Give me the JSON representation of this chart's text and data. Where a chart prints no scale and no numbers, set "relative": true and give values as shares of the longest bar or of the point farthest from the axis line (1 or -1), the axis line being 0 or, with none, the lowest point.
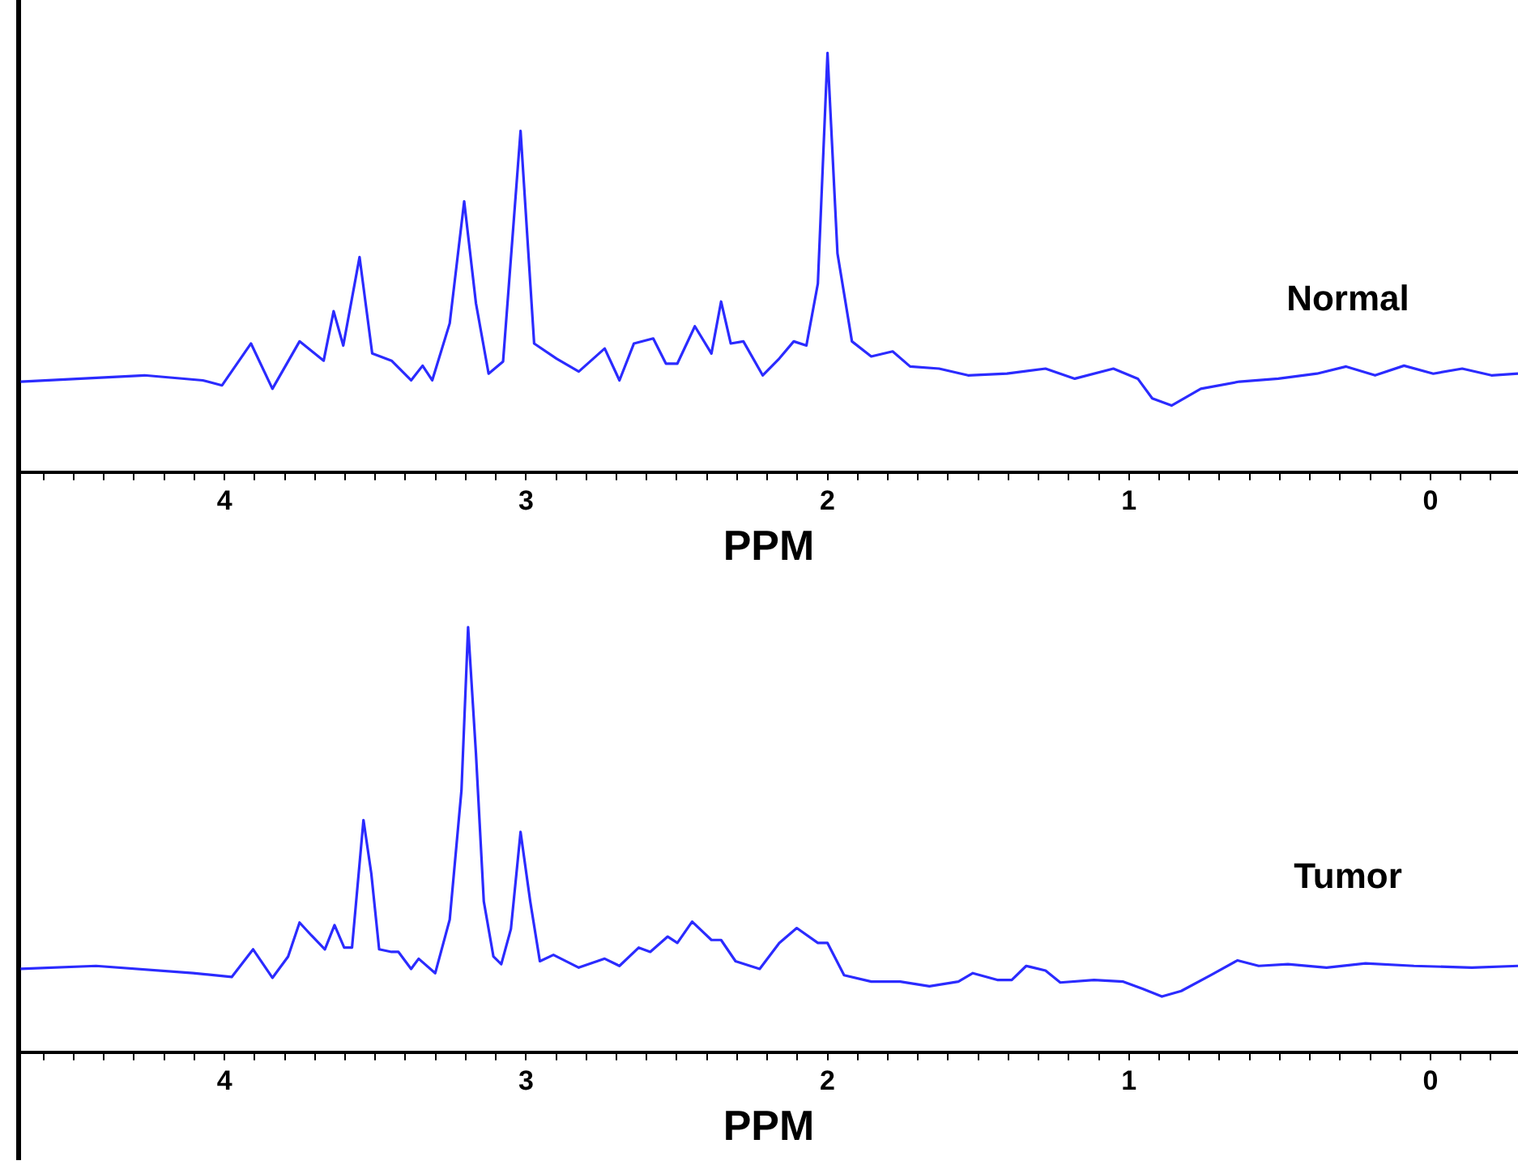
{
  "chart_data": [
    {
      "type": "line",
      "xlabel": "PPM",
      "relative": true,
      "marker": "none",
      "xlim": [
        4.68,
        -0.29
      ],
      "xticks": [
        {
          "value": 4.6,
          "label": null
        },
        {
          "value": 4.5,
          "label": null
        },
        {
          "value": 4.4,
          "label": null
        },
        {
          "value": 4.3,
          "label": null
        },
        {
          "value": 4.2,
          "label": null
        },
        {
          "value": 4.1,
          "label": null
        },
        4,
        {
          "value": 3.9,
          "label": null
        },
        {
          "value": 3.8,
          "label": null
        },
        {
          "value": 3.7,
          "label": null
        },
        {
          "value": 3.6,
          "label": null
        },
        {
          "value": 3.5,
          "label": null
        },
        {
          "value": 3.4,
          "label": null
        },
        {
          "value": 3.3,
          "label": null
        },
        {
          "value": 3.2,
          "label": null
        },
        {
          "value": 3.1,
          "label": null
        },
        3,
        {
          "value": 2.9,
          "label": null
        },
        {
          "value": 2.8,
          "label": null
        },
        {
          "value": 2.7,
          "label": null
        },
        {
          "value": 2.6,
          "label": null
        },
        {
          "value": 2.5,
          "label": null
        },
        {
          "value": 2.4,
          "label": null
        },
        {
          "value": 2.3,
          "label": null
        },
        {
          "value": 2.2,
          "label": null
        },
        {
          "value": 2.1,
          "label": null
        },
        2,
        {
          "value": 1.9,
          "label": null
        },
        {
          "value": 1.8,
          "label": null
        },
        {
          "value": 1.7,
          "label": null
        },
        {
          "value": 1.6,
          "label": null
        },
        {
          "value": 1.5,
          "label": null
        },
        {
          "value": 1.4,
          "label": null
        },
        {
          "value": 1.3,
          "label": null
        },
        {
          "value": 1.2,
          "label": null
        },
        {
          "value": 1.1,
          "label": null
        },
        1,
        {
          "value": 0.9,
          "label": null
        },
        {
          "value": 0.8,
          "label": null
        },
        {
          "value": 0.7,
          "label": null
        },
        {
          "value": 0.6,
          "label": null
        },
        {
          "value": 0.5,
          "label": null
        },
        {
          "value": 0.4,
          "label": null
        },
        {
          "value": 0.3,
          "label": null
        },
        {
          "value": 0.2,
          "label": null
        },
        {
          "value": 0.1,
          "label": null
        },
        0,
        {
          "value": -0.1,
          "label": null
        },
        {
          "value": -0.2,
          "label": null
        }
      ],
      "x": [
        4.676,
        4.265,
        4.072,
        4.008,
        3.912,
        3.841,
        3.751,
        3.671,
        3.638,
        3.606,
        3.552,
        3.51,
        3.446,
        3.381,
        3.343,
        3.311,
        3.253,
        3.205,
        3.166,
        3.124,
        3.076,
        3.018,
        2.973,
        2.899,
        2.825,
        2.739,
        2.69,
        2.642,
        2.578,
        2.536,
        2.498,
        2.44,
        2.385,
        2.353,
        2.321,
        2.279,
        2.215,
        2.16,
        2.112,
        2.07,
        2.032,
        2.0,
        1.967,
        1.919,
        1.855,
        1.784,
        1.726,
        1.63,
        1.534,
        1.405,
        1.277,
        1.18,
        1.052,
        0.971,
        0.923,
        0.859,
        0.762,
        0.634,
        0.505,
        0.377,
        0.28,
        0.184,
        0.088,
        -0.009,
        -0.105,
        -0.202,
        -0.29
      ],
      "series": [
        {
          "name": "Normal",
          "color": "#2b2bff",
          "values": [
            0.216,
            0.231,
            0.219,
            0.207,
            0.307,
            0.199,
            0.312,
            0.266,
            0.384,
            0.302,
            0.513,
            0.283,
            0.266,
            0.219,
            0.254,
            0.219,
            0.355,
            0.646,
            0.403,
            0.235,
            0.264,
            0.814,
            0.307,
            0.271,
            0.24,
            0.295,
            0.219,
            0.307,
            0.319,
            0.259,
            0.259,
            0.348,
            0.283,
            0.407,
            0.307,
            0.312,
            0.231,
            0.271,
            0.312,
            0.302,
            0.45,
            1,
            0.522,
            0.312,
            0.276,
            0.288,
            0.252,
            0.247,
            0.231,
            0.235,
            0.247,
            0.223,
            0.247,
            0.223,
            0.176,
            0.159,
            0.199,
            0.216,
            0.223,
            0.235,
            0.252,
            0.231,
            0.254,
            0.235,
            0.247,
            0.231,
            0.235
          ]
        }
      ]
    },
    {
      "type": "line",
      "xlabel": "PPM",
      "relative": true,
      "marker": "none",
      "xlim": [
        4.68,
        -0.29
      ],
      "xticks": [
        {
          "value": 4.6,
          "label": null
        },
        {
          "value": 4.5,
          "label": null
        },
        {
          "value": 4.4,
          "label": null
        },
        {
          "value": 4.3,
          "label": null
        },
        {
          "value": 4.2,
          "label": null
        },
        {
          "value": 4.1,
          "label": null
        },
        4,
        {
          "value": 3.9,
          "label": null
        },
        {
          "value": 3.8,
          "label": null
        },
        {
          "value": 3.7,
          "label": null
        },
        {
          "value": 3.6,
          "label": null
        },
        {
          "value": 3.5,
          "label": null
        },
        {
          "value": 3.4,
          "label": null
        },
        {
          "value": 3.3,
          "label": null
        },
        {
          "value": 3.2,
          "label": null
        },
        {
          "value": 3.1,
          "label": null
        },
        3,
        {
          "value": 2.9,
          "label": null
        },
        {
          "value": 2.8,
          "label": null
        },
        {
          "value": 2.7,
          "label": null
        },
        {
          "value": 2.6,
          "label": null
        },
        {
          "value": 2.5,
          "label": null
        },
        {
          "value": 2.4,
          "label": null
        },
        {
          "value": 2.3,
          "label": null
        },
        {
          "value": 2.2,
          "label": null
        },
        {
          "value": 2.1,
          "label": null
        },
        2,
        {
          "value": 1.9,
          "label": null
        },
        {
          "value": 1.8,
          "label": null
        },
        {
          "value": 1.7,
          "label": null
        },
        {
          "value": 1.6,
          "label": null
        },
        {
          "value": 1.5,
          "label": null
        },
        {
          "value": 1.4,
          "label": null
        },
        {
          "value": 1.3,
          "label": null
        },
        {
          "value": 1.2,
          "label": null
        },
        {
          "value": 1.1,
          "label": null
        },
        1,
        {
          "value": 0.9,
          "label": null
        },
        {
          "value": 0.8,
          "label": null
        },
        {
          "value": 0.7,
          "label": null
        },
        {
          "value": 0.6,
          "label": null
        },
        {
          "value": 0.5,
          "label": null
        },
        {
          "value": 0.4,
          "label": null
        },
        {
          "value": 0.3,
          "label": null
        },
        {
          "value": 0.2,
          "label": null
        },
        {
          "value": 0.1,
          "label": null
        },
        0,
        {
          "value": -0.1,
          "label": null
        },
        {
          "value": -0.2,
          "label": null
        }
      ],
      "x": [
        4.676,
        4.426,
        4.104,
        3.976,
        3.905,
        3.841,
        3.789,
        3.751,
        3.712,
        3.667,
        3.635,
        3.603,
        3.577,
        3.539,
        3.513,
        3.487,
        3.446,
        3.423,
        3.381,
        3.356,
        3.301,
        3.253,
        3.214,
        3.192,
        3.166,
        3.14,
        3.108,
        3.082,
        3.05,
        3.018,
        2.986,
        2.954,
        2.909,
        2.825,
        2.739,
        2.69,
        2.626,
        2.588,
        2.53,
        2.498,
        2.449,
        2.385,
        2.353,
        2.305,
        2.225,
        2.16,
        2.102,
        2.032,
        2.0,
        1.945,
        1.855,
        1.759,
        1.662,
        1.566,
        1.518,
        1.437,
        1.389,
        1.341,
        1.277,
        1.228,
        1.116,
        1.019,
        0.955,
        0.891,
        0.827,
        0.73,
        0.64,
        0.57,
        0.473,
        0.345,
        0.216,
        0.055,
        -0.137,
        -0.29
      ],
      "series": [
        {
          "name": "Tumor",
          "color": "#2b2bff",
          "values": [
            0.196,
            0.203,
            0.186,
            0.177,
            0.242,
            0.175,
            0.225,
            0.305,
            0.275,
            0.242,
            0.299,
            0.246,
            0.246,
            0.546,
            0.42,
            0.242,
            0.236,
            0.236,
            0.196,
            0.22,
            0.186,
            0.312,
            0.616,
            1,
            0.703,
            0.355,
            0.225,
            0.207,
            0.29,
            0.518,
            0.355,
            0.214,
            0.229,
            0.199,
            0.22,
            0.203,
            0.246,
            0.236,
            0.272,
            0.257,
            0.307,
            0.264,
            0.264,
            0.214,
            0.196,
            0.257,
            0.292,
            0.257,
            0.257,
            0.181,
            0.166,
            0.166,
            0.155,
            0.166,
            0.186,
            0.17,
            0.17,
            0.203,
            0.192,
            0.164,
            0.17,
            0.166,
            0.149,
            0.131,
            0.144,
            0.181,
            0.216,
            0.203,
            0.207,
            0.199,
            0.209,
            0.203,
            0.199,
            0.203
          ]
        }
      ]
    }
  ]
}
